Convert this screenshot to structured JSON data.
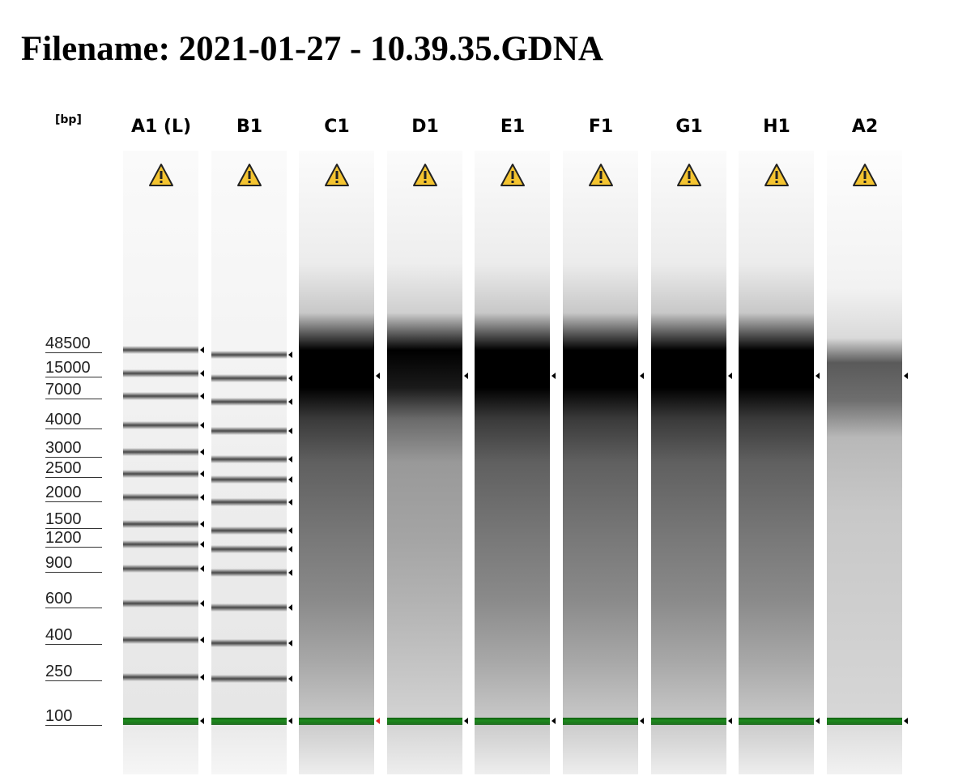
{
  "title": "Filename: 2021-01-27 - 10.39.35.GDNA",
  "unit_label": "[bp]",
  "ruler": [
    "48500",
    "15000",
    "7000",
    "4000",
    "3000",
    "2500",
    "2000",
    "1500",
    "1200",
    "900",
    "600",
    "400",
    "250",
    "100"
  ],
  "lanes": [
    {
      "label": "A1 (L)",
      "type": "ladder"
    },
    {
      "label": "B1",
      "type": "ladder"
    },
    {
      "label": "C1",
      "type": "smear-dark"
    },
    {
      "label": "D1",
      "type": "smear-light"
    },
    {
      "label": "E1",
      "type": "smear-dark"
    },
    {
      "label": "F1",
      "type": "smear-dark"
    },
    {
      "label": "G1",
      "type": "smear-dark"
    },
    {
      "label": "H1",
      "type": "smear-dark"
    },
    {
      "label": "A2",
      "type": "smear-faint"
    }
  ],
  "warning_icon": "warning-triangle-icon",
  "colors": {
    "warning": "#f4c430",
    "marker": "#1f8a1f",
    "red_arrow": "#e02020"
  }
}
